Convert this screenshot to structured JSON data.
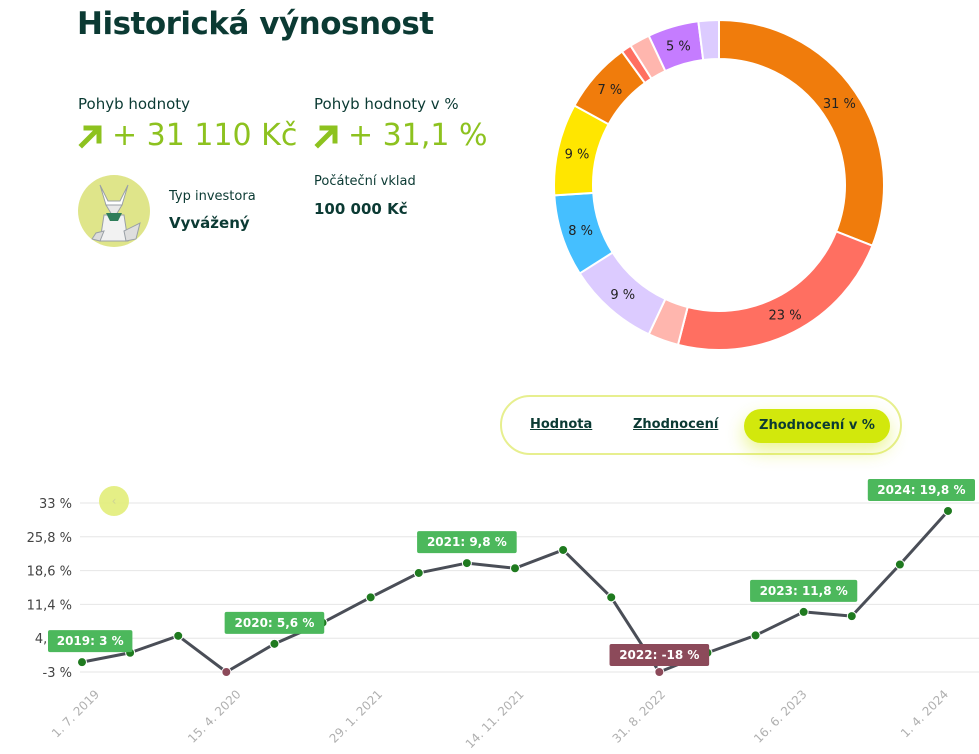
{
  "header": {
    "title": "Historická výnosnost"
  },
  "stats": {
    "value_change_label": "Pohyb hodnoty",
    "value_change": "+ 31 110 Kč",
    "percent_change_label": "Pohyb hodnoty v %",
    "percent_change": "+ 31,1 %",
    "investor_type_label": "Typ investora",
    "investor_type": "Vyvážený",
    "initial_deposit_label": "Počáteční vklad",
    "initial_deposit": "100 000 Kč"
  },
  "colors": {
    "accent_green": "#8dc21f",
    "tab_active": "#d2e80c",
    "label_positive": "#4cb85c",
    "label_negative": "#8c4a5a",
    "line": "#4a4e57",
    "point": "#1f7a1f"
  },
  "tabs": {
    "value": "Hodnota",
    "appreciation": "Zhodnocení",
    "appreciation_pct": "Zhodnocení v %",
    "active": "Zhodnocení v %"
  },
  "nav": {
    "prev_icon": "chevron-left-icon",
    "prev_glyph": "‹"
  },
  "chart_data": [
    {
      "type": "pie",
      "variant": "donut",
      "slices": [
        {
          "label": "31 %",
          "value": 31,
          "color": "#f07c0c"
        },
        {
          "label": "23 %",
          "value": 23,
          "color": "#ff6f61"
        },
        {
          "label": "",
          "value": 3,
          "color": "#ffb6ae"
        },
        {
          "label": "9 %",
          "value": 9,
          "color": "#dccbff"
        },
        {
          "label": "8 %",
          "value": 8,
          "color": "#45bfff"
        },
        {
          "label": "9 %",
          "value": 9,
          "color": "#ffe600"
        },
        {
          "label": "7 %",
          "value": 7,
          "color": "#f07c0c"
        },
        {
          "label": "",
          "value": 1,
          "color": "#ff6f61"
        },
        {
          "label": "",
          "value": 2,
          "color": "#ffb6ae"
        },
        {
          "label": "5 %",
          "value": 5,
          "color": "#c57cff"
        },
        {
          "label": "",
          "value": 2,
          "color": "#dccbff"
        }
      ]
    },
    {
      "type": "line",
      "y_ticks": [
        "33 %",
        "25,8 %",
        "18,6 %",
        "11,4 %",
        "4,2 %",
        "-3 %"
      ],
      "ylim": [
        -3,
        33
      ],
      "x_ticks": [
        "1. 7. 2019",
        "15. 4. 2020",
        "29. 1. 2021",
        "14. 11. 2021",
        "31. 8. 2022",
        "16. 6. 2023",
        "1. 4. 2024"
      ],
      "grid": true,
      "points": [
        -0.9,
        1.1,
        4.7,
        -3.0,
        3.0,
        7.5,
        12.9,
        18.1,
        20.2,
        19.1,
        23.0,
        12.9,
        -3.0,
        1.1,
        4.8,
        9.8,
        8.9,
        19.9,
        31.3
      ],
      "labels": [
        {
          "text": "2019: 3 %",
          "point": 0,
          "kind": "pos"
        },
        {
          "text": "2020: 5,6 %",
          "point": 4,
          "kind": "pos"
        },
        {
          "text": "2021: 9,8 %",
          "point": 8,
          "kind": "pos"
        },
        {
          "text": "2022: -18 %",
          "point": 12,
          "kind": "neg"
        },
        {
          "text": "2023: 11,8 %",
          "point": 15,
          "kind": "pos"
        },
        {
          "text": "2024: 19,8 %",
          "point": 18,
          "kind": "pos"
        }
      ],
      "negative_points": [
        3,
        12
      ]
    }
  ]
}
